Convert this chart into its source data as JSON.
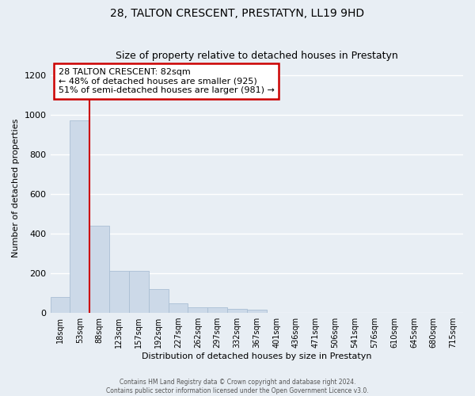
{
  "title": "28, TALTON CRESCENT, PRESTATYN, LL19 9HD",
  "subtitle": "Size of property relative to detached houses in Prestatyn",
  "xlabel": "Distribution of detached houses by size in Prestatyn",
  "ylabel": "Number of detached properties",
  "bar_labels": [
    "18sqm",
    "53sqm",
    "88sqm",
    "123sqm",
    "157sqm",
    "192sqm",
    "227sqm",
    "262sqm",
    "297sqm",
    "332sqm",
    "367sqm",
    "401sqm",
    "436sqm",
    "471sqm",
    "506sqm",
    "541sqm",
    "576sqm",
    "610sqm",
    "645sqm",
    "680sqm",
    "715sqm"
  ],
  "bar_heights": [
    80,
    970,
    440,
    210,
    210,
    120,
    50,
    30,
    30,
    20,
    15,
    0,
    0,
    0,
    0,
    0,
    0,
    0,
    0,
    0,
    0
  ],
  "bar_color": "#ccd9e8",
  "bar_edge_color": "#aabfd4",
  "property_line_x": 1.5,
  "property_line_color": "#cc0000",
  "annotation_title": "28 TALTON CRESCENT: 82sqm",
  "annotation_line1": "← 48% of detached houses are smaller (925)",
  "annotation_line2": "51% of semi-detached houses are larger (981) →",
  "annotation_box_color": "#ffffff",
  "annotation_box_edge": "#cc0000",
  "ylim": [
    0,
    1260
  ],
  "yticks": [
    0,
    200,
    400,
    600,
    800,
    1000,
    1200
  ],
  "footer1": "Contains HM Land Registry data © Crown copyright and database right 2024.",
  "footer2": "Contains public sector information licensed under the Open Government Licence v3.0.",
  "bg_color": "#e8eef4"
}
